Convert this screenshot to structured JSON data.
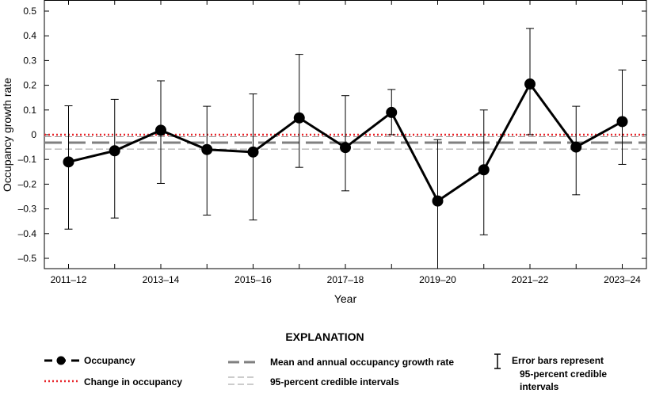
{
  "chart_data": {
    "type": "line",
    "xlabel": "Year",
    "ylabel": "Occupancy growth rate",
    "ylim": [
      -0.5,
      0.5
    ],
    "yticks": [
      0.5,
      0.4,
      0.3,
      0.2,
      0.1,
      0,
      -0.1,
      -0.2,
      -0.3,
      -0.4,
      -0.5
    ],
    "ytick_labels": [
      "0.5",
      "0.4",
      "0.3",
      "0.2",
      "0.1",
      "0",
      "–0.1",
      "–0.2",
      "–0.3",
      "–0.4",
      "–0.5"
    ],
    "categories": [
      "2011–12",
      "2012–13",
      "2013–14",
      "2014–15",
      "2015–16",
      "2016–17",
      "2017–18",
      "2018–19",
      "2019–20",
      "2020–21",
      "2021–22",
      "2022–23",
      "2023–24"
    ],
    "xtick_labels": [
      "2011–12",
      "",
      "2013–14",
      "",
      "2015–16",
      "",
      "2017–18",
      "",
      "2019–20",
      "",
      "2021–22",
      "",
      "2023–24"
    ],
    "series": [
      {
        "name": "Occupancy",
        "values": [
          -0.11,
          -0.065,
          0.018,
          -0.06,
          -0.07,
          0.068,
          -0.052,
          0.09,
          -0.268,
          -0.142,
          0.205,
          -0.05,
          0.053
        ],
        "lower": [
          -0.382,
          -0.337,
          -0.197,
          -0.325,
          -0.345,
          -0.132,
          -0.227,
          0.0,
          -0.55,
          -0.405,
          0.0,
          -0.243,
          -0.12
        ],
        "upper": [
          0.117,
          0.143,
          0.218,
          0.115,
          0.165,
          0.325,
          0.158,
          0.183,
          -0.02,
          0.1,
          0.43,
          0.115,
          0.262
        ],
        "color": "#000000"
      }
    ],
    "reference_lines": {
      "change": 0.0,
      "mean": -0.032,
      "ci_lower": -0.058,
      "ci_upper": -0.008
    },
    "colors": {
      "change": "#e8262b",
      "mean": "#808080",
      "ci": "#9a9a9a"
    },
    "legend": {
      "title": "EXPLANATION",
      "occupancy": "Occupancy",
      "change": "Change in occupancy",
      "mean": "Mean and annual occupancy growth rate",
      "ci": "95-percent credible intervals",
      "errorbars": [
        "Error bars represent",
        "95-percent credible",
        "intervals"
      ]
    }
  }
}
